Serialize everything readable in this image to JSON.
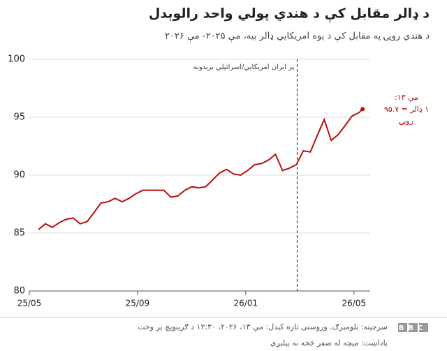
{
  "chart_data": {
    "type": "line",
    "title": "د ډالر مقابل کې د هندي پولي واحد رالوېدل",
    "subtitle": "د هندي روپۍ په مقابل کې د یوه امریکايي ډالر بیه، مې ۲۰۲۵- مې ۲۰۲۶",
    "x": [
      0.34,
      0.59,
      0.85,
      1.11,
      1.37,
      1.62,
      1.88,
      2.14,
      2.4,
      2.65,
      2.91,
      3.17,
      3.43,
      3.69,
      3.94,
      4.2,
      4.46,
      4.72,
      4.97,
      5.23,
      5.49,
      5.75,
      6.01,
      6.26,
      6.52,
      6.78,
      7.04,
      7.29,
      7.55,
      7.81,
      8.07,
      8.32,
      8.58,
      8.84,
      9.1,
      9.36,
      9.61,
      9.87,
      10.13,
      10.39,
      10.64,
      10.9,
      11.16,
      11.42,
      11.68,
      11.93,
      12.19,
      12.32
    ],
    "series": [
      {
        "color": "#b80f0f",
        "values": [
          85.3,
          85.8,
          85.5,
          85.9,
          86.2,
          86.3,
          85.8,
          86.0,
          86.8,
          87.6,
          87.7,
          88.0,
          87.7,
          88.0,
          88.4,
          88.7,
          88.7,
          88.7,
          88.7,
          88.1,
          88.2,
          88.7,
          89.0,
          88.9,
          89.0,
          89.6,
          90.2,
          90.5,
          90.1,
          90.0,
          90.4,
          90.9,
          91.0,
          91.3,
          91.8,
          90.4,
          90.6,
          90.9,
          92.1,
          92.0,
          93.4,
          94.8,
          93.0,
          93.5,
          94.3,
          95.1,
          95.4,
          95.7
        ]
      }
    ],
    "xlim": [
      0,
      12.6
    ],
    "xticks": [
      {
        "value": 0,
        "label": "25/05"
      },
      {
        "value": 4,
        "label": "25/09"
      },
      {
        "value": 8,
        "label": "26/01"
      },
      {
        "value": 12,
        "label": "26/05"
      }
    ],
    "ylim": [
      80,
      100
    ],
    "yticks": [
      80,
      85,
      90,
      95,
      100
    ],
    "grid": true,
    "annotation": {
      "x": 9.9,
      "text": "پر ایران امریکايي/اسرائیلي بریدونه"
    },
    "callout": {
      "lines": [
        "مې ۱۳:",
        "۱ ډالر = ۹۵.۷",
        "روپۍ"
      ],
      "color": "#b80f0f"
    },
    "source": "سرچینه: بلومبرګ. وروستی تازه کېدل: مې ۱۳، ۲۰۲۶، ۱۲:۳۰ د ګرینویچ پر وخت",
    "note": "یاداښت: میچه له صفر څخه نه پیلېږي",
    "logo": "BBC"
  }
}
